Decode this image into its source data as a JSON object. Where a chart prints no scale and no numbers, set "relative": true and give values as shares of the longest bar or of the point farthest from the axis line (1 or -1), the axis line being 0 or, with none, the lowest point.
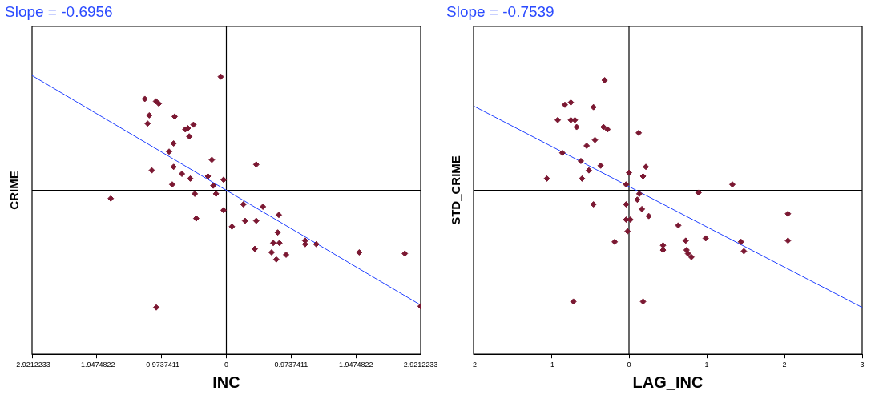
{
  "chart_data": [
    {
      "type": "scatter",
      "title": "Slope = -0.6956",
      "xlabel": "INC",
      "ylabel": "CRIME",
      "relative": true,
      "marker": "diamond",
      "grid": false,
      "legend": false,
      "xlim": [
        -2.9212233,
        2.9212233
      ],
      "xticks": [
        -2.9212233,
        -1.9474822,
        -0.9737411,
        0,
        0.9737411,
        1.9474822,
        2.9212233
      ],
      "ref_lines": [
        {
          "axis": "x",
          "value": 0,
          "color": "#000000"
        }
      ],
      "series": [
        {
          "type": "scatter",
          "color": "#7b1832",
          "x": [
            -0.084,
            -1.226,
            -1.058,
            -1.016,
            -1.159,
            -1.184,
            -0.777,
            -0.495,
            -0.617,
            -0.579,
            -0.558,
            -0.793,
            -0.861,
            -0.218,
            0.449,
            -1.121,
            -0.793,
            -0.668,
            -0.542,
            -0.277,
            -0.042,
            -0.814,
            -0.197,
            -0.474,
            -0.155,
            -1.738,
            -0.042,
            -0.453,
            0.256,
            0.55,
            0.084,
            0.281,
            0.449,
            0.789,
            0.772,
            0.705,
            0.798,
            0.428,
            0.68,
            0.751,
            0.898,
            1.184,
            1.184,
            1.352,
            1.998,
            2.683,
            2.92,
            -1.054
          ],
          "values": [
            0.97,
            0.78,
            0.76,
            0.74,
            0.64,
            0.57,
            0.63,
            0.56,
            0.52,
            0.53,
            0.46,
            0.4,
            0.33,
            0.26,
            0.22,
            0.17,
            0.2,
            0.14,
            0.1,
            0.12,
            0.09,
            0.05,
            0.04,
            -0.03,
            -0.03,
            -0.07,
            -0.17,
            -0.24,
            -0.12,
            -0.14,
            -0.31,
            -0.26,
            -0.26,
            -0.21,
            -0.36,
            -0.45,
            -0.45,
            -0.5,
            -0.53,
            -0.59,
            -0.55,
            -0.43,
            -0.46,
            -0.46,
            -0.53,
            -0.54,
            -0.99,
            -1
          ]
        },
        {
          "type": "line",
          "marker": "none",
          "color": "#1f3fff",
          "x": [
            -2.9212233,
            2.9212233
          ],
          "values": [
            0.98,
            -0.98
          ]
        }
      ]
    },
    {
      "type": "scatter",
      "title": "Slope = -0.7539",
      "xlabel": "LAG_INC",
      "ylabel": "STD_CRIME",
      "relative": true,
      "marker": "diamond",
      "grid": false,
      "legend": false,
      "xlim": [
        -2,
        3
      ],
      "xticks": [
        -2,
        -1,
        0,
        1,
        2,
        3
      ],
      "ref_lines": [
        {
          "axis": "x",
          "value": 0,
          "color": "#000000"
        }
      ],
      "series": [
        {
          "type": "scatter",
          "color": "#7b1832",
          "x": [
            -0.313,
            -0.825,
            -0.748,
            -0.457,
            -0.917,
            -0.748,
            -0.696,
            -0.674,
            -0.328,
            -0.276,
            0.125,
            -0.438,
            -0.545,
            -0.858,
            -0.619,
            -0.365,
            -0.516,
            0.217,
            0,
            0.181,
            -1.057,
            -0.604,
            -0.037,
            1.33,
            0.133,
            0.895,
            0.107,
            -0.457,
            -0.037,
            0.166,
            0.254,
            -0.037,
            0.018,
            -0.018,
            0.634,
            2.045,
            2.045,
            -0.184,
            0.73,
            0.987,
            1.441,
            1.478,
            0.438,
            0.438,
            0.741,
            0.759,
            0.803,
            -0.715,
            0.181
          ],
          "values": [
            0.94,
            0.73,
            0.75,
            0.71,
            0.6,
            0.6,
            0.6,
            0.54,
            0.54,
            0.52,
            0.49,
            0.43,
            0.38,
            0.32,
            0.25,
            0.21,
            0.17,
            0.2,
            0.15,
            0.12,
            0.1,
            0.1,
            0.05,
            0.05,
            -0.03,
            -0.02,
            -0.08,
            -0.12,
            -0.12,
            -0.16,
            -0.22,
            -0.25,
            -0.25,
            -0.35,
            -0.3,
            -0.2,
            -0.43,
            -0.44,
            -0.43,
            -0.41,
            -0.44,
            -0.52,
            -0.47,
            -0.51,
            -0.51,
            -0.54,
            -0.57,
            -0.95,
            -0.95
          ]
        },
        {
          "type": "line",
          "marker": "none",
          "color": "#1f3fff",
          "x": [
            -2,
            3
          ],
          "values": [
            0.72,
            -1
          ]
        }
      ]
    }
  ]
}
